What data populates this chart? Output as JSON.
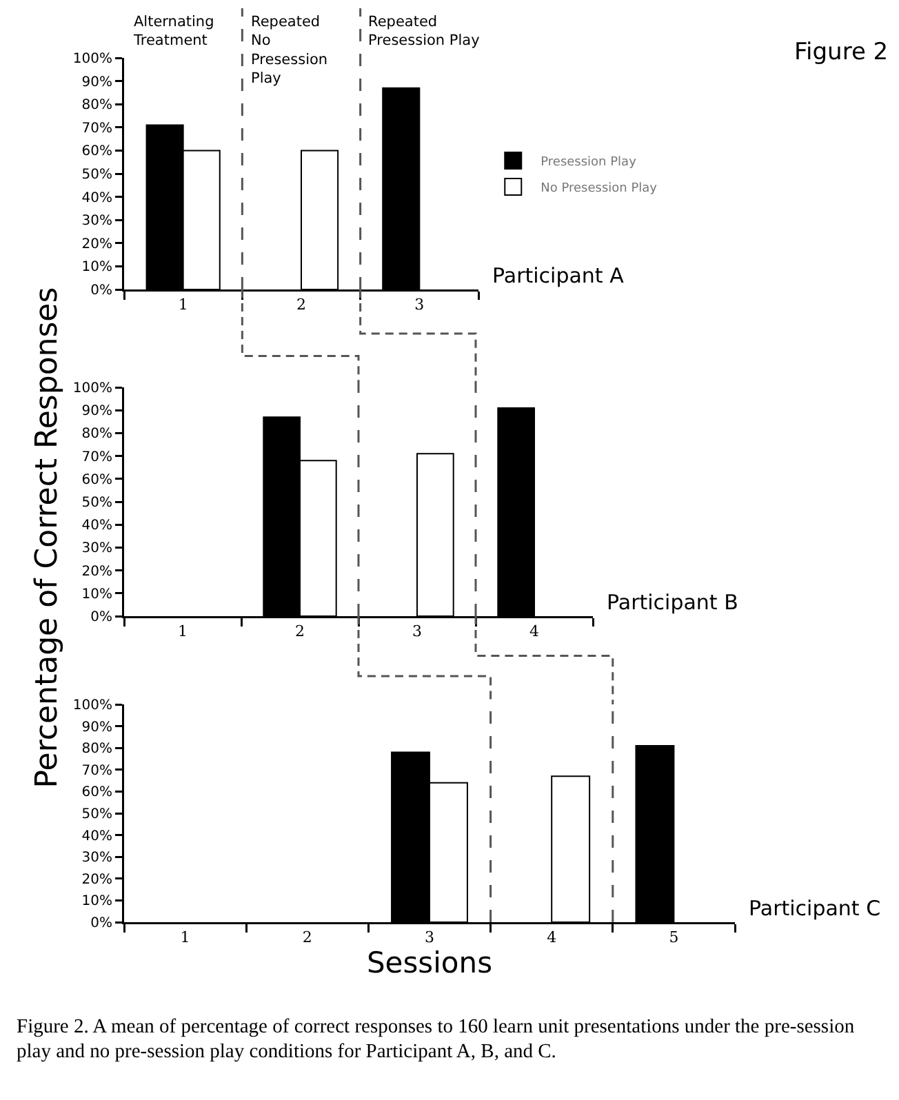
{
  "chart_data": [
    {
      "type": "bar",
      "x": [
        1,
        2,
        3
      ],
      "xlim": [
        0.5,
        3.5
      ],
      "xticks": [
        1,
        2,
        3
      ],
      "ylim": [
        0,
        100
      ],
      "yticks": [
        {
          "value": 0,
          "label": "0%"
        },
        {
          "value": 10,
          "label": "10%"
        },
        {
          "value": 20,
          "label": "20%"
        },
        {
          "value": 30,
          "label": "30%"
        },
        {
          "value": 40,
          "label": "40%"
        },
        {
          "value": 50,
          "label": "50%"
        },
        {
          "value": 60,
          "label": "60%"
        },
        {
          "value": 70,
          "label": "70%"
        },
        {
          "value": 80,
          "label": "80%"
        },
        {
          "value": 90,
          "label": "90%"
        },
        {
          "value": 100,
          "label": "100%"
        }
      ],
      "series": [
        {
          "name": "Presession Play",
          "color": "#000000",
          "values": [
            71,
            null,
            87
          ]
        },
        {
          "name": "No Presession Play",
          "color": "#ffffff",
          "values": [
            60,
            60,
            null
          ]
        }
      ],
      "ref_lines": [
        {
          "axis": "x",
          "value": 1.5,
          "color": "#555555",
          "line_style": "dashed"
        },
        {
          "axis": "x",
          "value": 2.5,
          "color": "#555555",
          "line_style": "dashed"
        }
      ],
      "legend": "right",
      "annotations": [
        "Alternating\nTreatment",
        "Repeated\nNo\nPresession\nPlay",
        "Repeated\nPresession Play",
        "Participant A",
        "Figure 2"
      ]
    },
    {
      "type": "bar",
      "ylabel": "Percentage of Correct Responses",
      "x": [
        2,
        3,
        4
      ],
      "xlim": [
        0.5,
        4.5
      ],
      "xticks": [
        1,
        2,
        3,
        4
      ],
      "ylim": [
        0,
        100
      ],
      "yticks": [
        {
          "value": 0,
          "label": "0%"
        },
        {
          "value": 10,
          "label": "10%"
        },
        {
          "value": 20,
          "label": "20%"
        },
        {
          "value": 30,
          "label": "30%"
        },
        {
          "value": 40,
          "label": "40%"
        },
        {
          "value": 50,
          "label": "50%"
        },
        {
          "value": 60,
          "label": "60%"
        },
        {
          "value": 70,
          "label": "70%"
        },
        {
          "value": 80,
          "label": "80%"
        },
        {
          "value": 90,
          "label": "90%"
        },
        {
          "value": 100,
          "label": "100%"
        }
      ],
      "series": [
        {
          "color": "#000000",
          "values": [
            87,
            null,
            91
          ]
        },
        {
          "color": "#ffffff",
          "values": [
            68,
            71,
            null
          ]
        }
      ],
      "ref_lines": [
        {
          "axis": "x",
          "value": 2.5,
          "color": "#555555",
          "line_style": "dashed"
        },
        {
          "axis": "x",
          "value": 3.5,
          "color": "#555555",
          "line_style": "dashed"
        }
      ],
      "annotations": [
        "Participant B"
      ]
    },
    {
      "type": "bar",
      "xlabel": "Sessions",
      "x": [
        3,
        4,
        5
      ],
      "xlim": [
        0.5,
        5.5
      ],
      "xticks": [
        1,
        2,
        3,
        4,
        5
      ],
      "ylim": [
        0,
        100
      ],
      "yticks": [
        {
          "value": 0,
          "label": "0%"
        },
        {
          "value": 10,
          "label": "10%"
        },
        {
          "value": 20,
          "label": "20%"
        },
        {
          "value": 30,
          "label": "30%"
        },
        {
          "value": 40,
          "label": "40%"
        },
        {
          "value": 50,
          "label": "50%"
        },
        {
          "value": 60,
          "label": "60%"
        },
        {
          "value": 70,
          "label": "70%"
        },
        {
          "value": 80,
          "label": "80%"
        },
        {
          "value": 90,
          "label": "90%"
        },
        {
          "value": 100,
          "label": "100%"
        }
      ],
      "series": [
        {
          "color": "#000000",
          "values": [
            78,
            null,
            81
          ]
        },
        {
          "color": "#ffffff",
          "values": [
            64,
            67,
            null
          ]
        }
      ],
      "ref_lines": [
        {
          "axis": "x",
          "value": 3.5,
          "color": "#555555",
          "line_style": "dashed"
        },
        {
          "axis": "x",
          "value": 4.5,
          "color": "#555555",
          "line_style": "dashed"
        }
      ],
      "annotations": [
        "Participant C",
        "Figure 2.  A mean of percentage of correct responses to 160 learn unit presentations under the pre-session play  and no pre-session play conditions for Participant A, B, and C."
      ]
    }
  ]
}
